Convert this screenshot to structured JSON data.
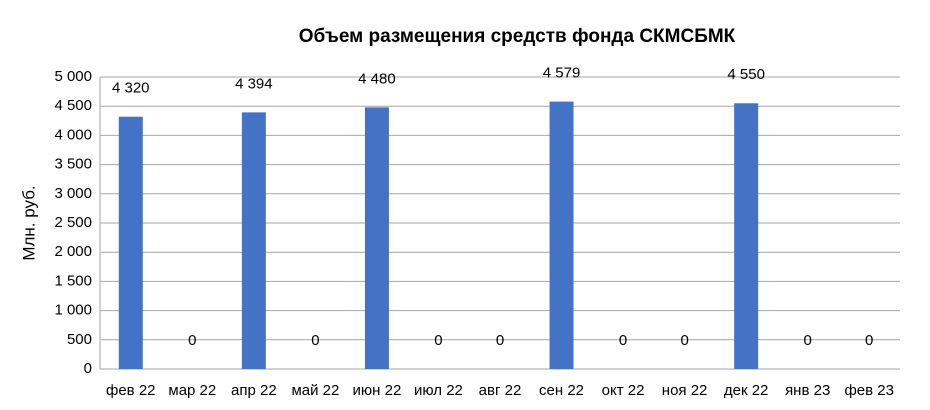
{
  "chart_data": {
    "type": "bar",
    "title": "Объем размещения средств фонда СКМСБМК",
    "y_label": "Млн. руб.",
    "categories": [
      "фев 22",
      "мар 22",
      "апр 22",
      "май 22",
      "июн 22",
      "июл 22",
      "авг 22",
      "сен 22",
      "окт 22",
      "ноя 22",
      "дек 22",
      "янв 23",
      "фев 23"
    ],
    "values": [
      4320,
      0,
      4394,
      0,
      4480,
      0,
      0,
      4579,
      0,
      0,
      4550,
      0,
      0
    ],
    "value_labels": [
      "4 320",
      "0",
      "4 394",
      "0",
      "4 480",
      "0",
      "0",
      "4 579",
      "0",
      "0",
      "4 550",
      "0",
      "0"
    ],
    "color": "#4472c4",
    "ylim": [
      0,
      5000
    ],
    "yticks": [
      0,
      500,
      {
        "value": 1000,
        "label": "1 000"
      },
      {
        "value": 1500,
        "label": "1 500"
      },
      {
        "value": 2000,
        "label": "2 000"
      },
      {
        "value": 2500,
        "label": "2 500"
      },
      {
        "value": 3000,
        "label": "3 000"
      },
      {
        "value": 3500,
        "label": "3 500"
      },
      {
        "value": 4000,
        "label": "4 000"
      },
      {
        "value": 4500,
        "label": "4 500"
      },
      {
        "value": 5000,
        "label": "5 000"
      }
    ],
    "grid": true
  }
}
